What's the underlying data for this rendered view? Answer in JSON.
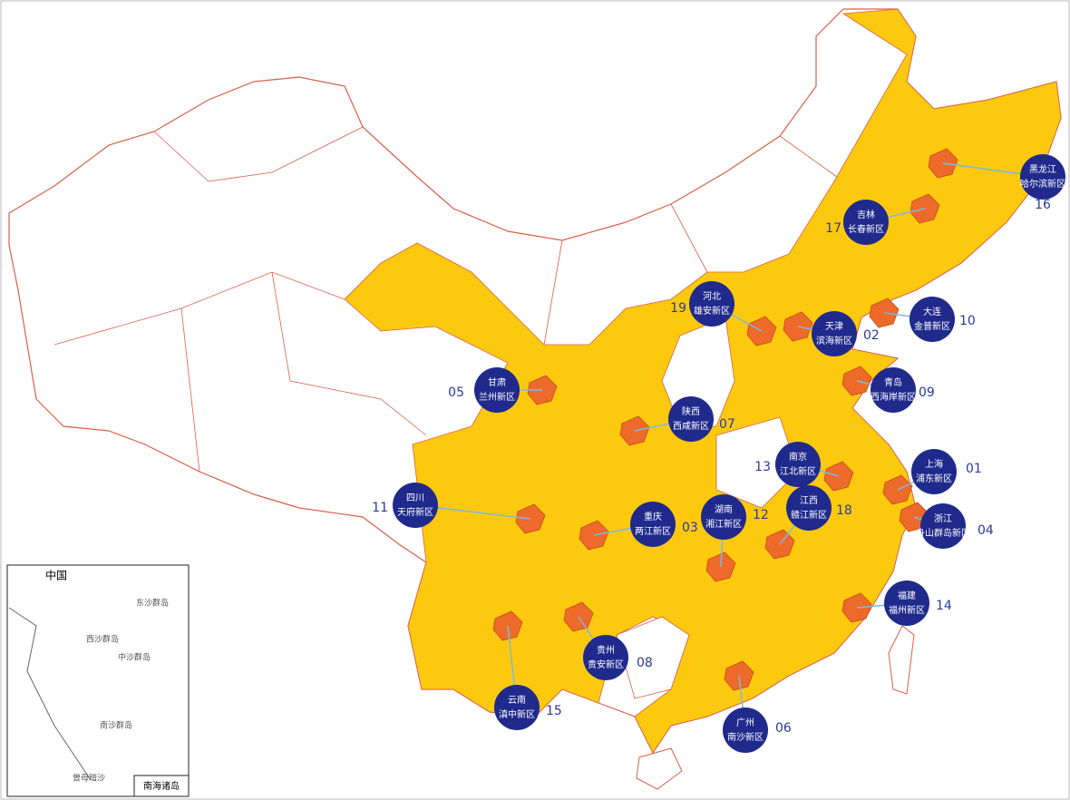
{
  "markers": [
    {
      "region": "上海",
      "zone": "浦东新区",
      "number": "01"
    },
    {
      "region": "天津",
      "zone": "滨海新区",
      "number": "02"
    },
    {
      "region": "重庆",
      "zone": "两江新区",
      "number": "03"
    },
    {
      "region": "浙江",
      "zone": "舟山群岛新区",
      "number": "04"
    },
    {
      "region": "甘肃",
      "zone": "兰州新区",
      "number": "05"
    },
    {
      "region": "广州",
      "zone": "南沙新区",
      "number": "06"
    },
    {
      "region": "陕西",
      "zone": "西咸新区",
      "number": "07"
    },
    {
      "region": "贵州",
      "zone": "贵安新区",
      "number": "08"
    },
    {
      "region": "青岛",
      "zone": "西海岸新区",
      "number": "09"
    },
    {
      "region": "大连",
      "zone": "金普新区",
      "number": "10"
    },
    {
      "region": "四川",
      "zone": "天府新区",
      "number": "11"
    },
    {
      "region": "湖南",
      "zone": "湘江新区",
      "number": "12"
    },
    {
      "region": "南京",
      "zone": "江北新区",
      "number": "13"
    },
    {
      "region": "福建",
      "zone": "福州新区",
      "number": "14"
    },
    {
      "region": "云南",
      "zone": "滇中新区",
      "number": "15"
    },
    {
      "region": "黑龙江",
      "zone": "哈尔滨新区",
      "number": "16"
    },
    {
      "region": "吉林",
      "zone": "长春新区",
      "number": "17"
    },
    {
      "region": "江西",
      "zone": "赣江新区",
      "number": "18"
    },
    {
      "region": "河北",
      "zone": "雄安新区",
      "number": "19"
    }
  ],
  "inset": {
    "title": "中国",
    "labels": [
      "东沙群岛",
      "西沙群岛",
      "中沙群岛",
      "南沙群岛",
      "曾母暗沙"
    ],
    "caption": "南海诸岛"
  }
}
